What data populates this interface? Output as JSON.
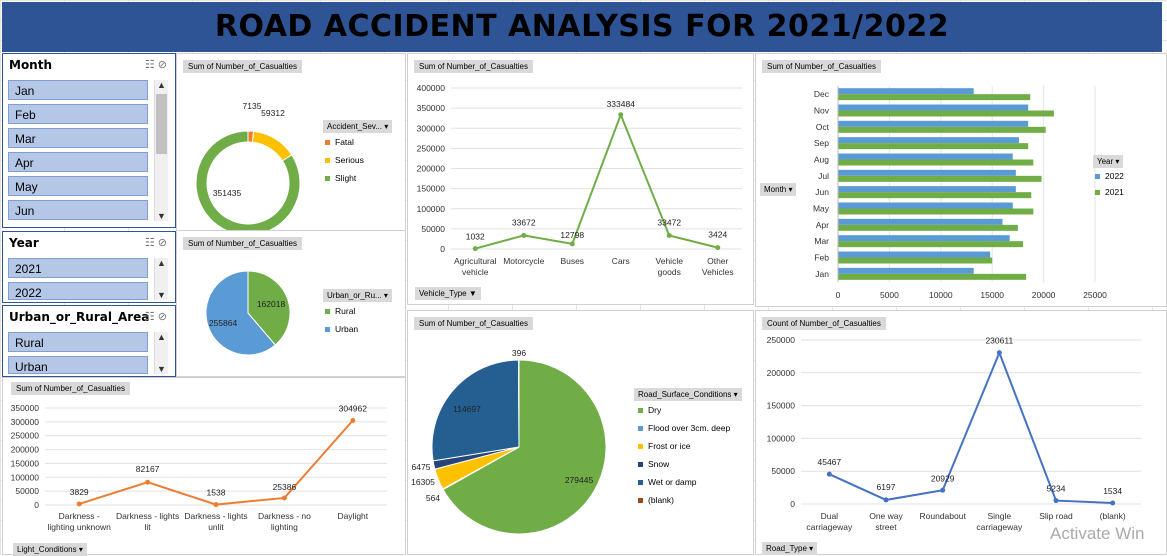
{
  "title": "ROAD ACCIDENT ANALYSIS FOR 2021/2022",
  "colors": {
    "title_bg": "#2e5496",
    "green": "#70ad47",
    "blue": "#5b9bd5",
    "yellow": "#ffc000",
    "orange": "#ed7d31",
    "dark": "#264478",
    "navy": "#255e91",
    "dark_navy": "#1f4e79"
  },
  "slicers": {
    "month": {
      "header": "Month",
      "items": [
        "Jan",
        "Feb",
        "Mar",
        "Apr",
        "May",
        "Jun"
      ]
    },
    "year": {
      "header": "Year",
      "items": [
        "2021",
        "2022"
      ]
    },
    "area": {
      "header": "Urban_or_Rural_Area",
      "items": [
        "Rural",
        "Urban"
      ]
    }
  },
  "severity": {
    "field": "Sum of Number_of_Casualties",
    "legend_title": "Accident_Sev...",
    "legend": [
      "Fatal",
      "Serious",
      "Slight"
    ]
  },
  "urban": {
    "field": "Sum of Number_of_Casualties",
    "legend_title": "Urban_or_Ru...",
    "legend": [
      "Rural",
      "Urban"
    ]
  },
  "vehicle": {
    "field": "Sum of Number_of_Casualties",
    "filter_button": "Vehicle_Type"
  },
  "month_chart": {
    "field": "Sum of Number_of_Casualties",
    "axis_button": "Month",
    "legend_title": "Year",
    "legend": [
      "2022",
      "2021"
    ]
  },
  "light": {
    "field": "Sum of Number_of_Casualties",
    "filter_button": "Light_Conditions"
  },
  "surface": {
    "field": "Sum of Number_of_Casualties",
    "legend_title": "Road_Surface_Conditions",
    "legend": [
      "Dry",
      "Flood over 3cm. deep",
      "Frost or ice",
      "Snow",
      "Wet or damp",
      "(blank)"
    ]
  },
  "road": {
    "field": "Count of Number_of_Casualties",
    "filter_button": "Road_Type"
  },
  "watermark": "Activate Win",
  "chart_data": [
    {
      "type": "pie",
      "name": "severity_donut",
      "categories": [
        "Fatal",
        "Serious",
        "Slight"
      ],
      "values": [
        7135,
        59312,
        351435
      ]
    },
    {
      "type": "pie",
      "name": "urban_pie",
      "categories": [
        "Rural",
        "Urban"
      ],
      "values": [
        162018,
        255864
      ]
    },
    {
      "type": "line",
      "name": "vehicle_type",
      "categories": [
        "Agricultural vehicle",
        "Motorcycle",
        "Buses",
        "Cars",
        "Vehicle goods",
        "Other Vehicles"
      ],
      "values": [
        1032,
        33672,
        12798,
        333484,
        33472,
        3424
      ],
      "ylim": [
        0,
        400000
      ],
      "yticks": [
        "0",
        "50000",
        "100000",
        "150000",
        "200000",
        "250000",
        "300000",
        "350000",
        "400000"
      ]
    },
    {
      "type": "bar",
      "name": "monthly",
      "categories": [
        "Jan",
        "Feb",
        "Mar",
        "Apr",
        "May",
        "Jun",
        "Jul",
        "Aug",
        "Sep",
        "Oct",
        "Nov",
        "Dec"
      ],
      "series": [
        {
          "name": "2022",
          "values": [
            13200,
            14800,
            16700,
            16000,
            17000,
            17300,
            17300,
            17000,
            17600,
            18500,
            18500,
            13200
          ]
        },
        {
          "name": "2021",
          "values": [
            18300,
            15000,
            18000,
            17500,
            19000,
            18800,
            19800,
            19000,
            18500,
            20200,
            21000,
            18700
          ]
        }
      ],
      "xlim": [
        0,
        25000
      ],
      "xticks": [
        "0",
        "5000",
        "10000",
        "15000",
        "20000",
        "25000"
      ]
    },
    {
      "type": "line",
      "name": "light_conditions",
      "categories": [
        "Darkness - lighting unknown",
        "Darkness - lights lit",
        "Darkness - lights unlit",
        "Darkness - no lighting",
        "Daylight"
      ],
      "values": [
        3829,
        82167,
        1538,
        25386,
        304962
      ],
      "ylim": [
        0,
        350000
      ],
      "yticks": [
        "0",
        "50000",
        "100000",
        "150000",
        "200000",
        "250000",
        "300000",
        "350000"
      ]
    },
    {
      "type": "pie",
      "name": "road_surface",
      "categories": [
        "Dry",
        "Flood over 3cm. deep",
        "Frost or ice",
        "Snow",
        "Wet or damp",
        "(blank)"
      ],
      "values": [
        279445,
        564,
        16305,
        6475,
        114697,
        396
      ]
    },
    {
      "type": "line",
      "name": "road_type",
      "categories": [
        "Dual carriageway",
        "One way street",
        "Roundabout",
        "Single carriageway",
        "Slip road",
        "(blank)"
      ],
      "values": [
        45467,
        6197,
        20929,
        230611,
        5234,
        1534
      ],
      "ylim": [
        0,
        250000
      ],
      "yticks": [
        "0",
        "50000",
        "100000",
        "150000",
        "200000",
        "250000"
      ]
    }
  ]
}
